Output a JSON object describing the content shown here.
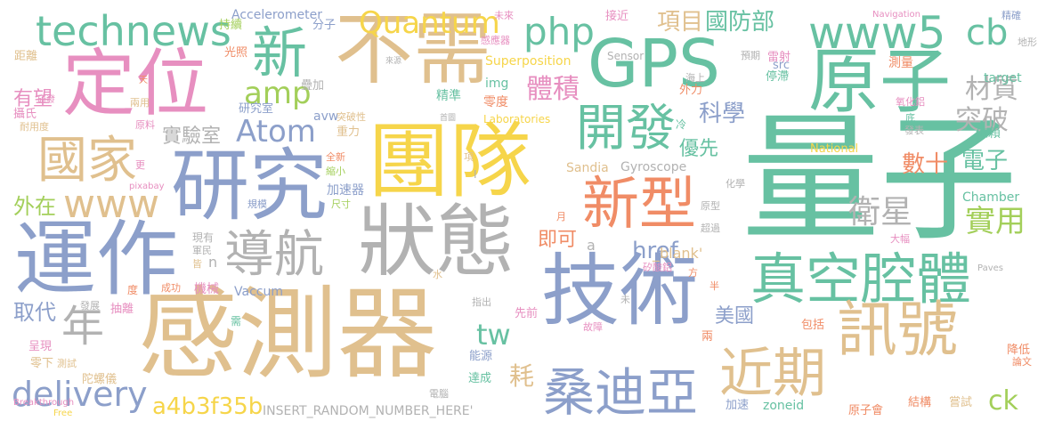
{
  "palette": {
    "teal": "#67c1a2",
    "blue": "#8c9fca",
    "tan": "#e0c08e",
    "pink": "#e78fc0",
    "orange": "#f08c66",
    "gray": "#b2b2b2",
    "olive": "#a3cf5a",
    "yellow": "#f6d54a"
  },
  "words": [
    {
      "text": "量子",
      "color": "teal"
    },
    {
      "text": "團隊",
      "color": "yellow"
    },
    {
      "text": "技術",
      "color": "blue"
    },
    {
      "text": "感測器",
      "color": "tan"
    },
    {
      "text": "狀態",
      "color": "gray"
    },
    {
      "text": "不需",
      "color": "tan"
    },
    {
      "text": "研究",
      "color": "blue"
    },
    {
      "text": "運作",
      "color": "blue"
    },
    {
      "text": "定位",
      "color": "pink"
    },
    {
      "text": "GPS",
      "color": "teal"
    },
    {
      "text": "原子",
      "color": "teal"
    },
    {
      "text": "真空腔體",
      "color": "teal"
    },
    {
      "text": "訊號",
      "color": "tan"
    },
    {
      "text": "新型",
      "color": "orange"
    },
    {
      "text": "桑迪亞",
      "color": "blue"
    },
    {
      "text": "導航",
      "color": "gray"
    },
    {
      "text": "近期",
      "color": "tan"
    },
    {
      "text": "開發",
      "color": "teal"
    },
    {
      "text": "國家",
      "color": "tan"
    },
    {
      "text": "technews",
      "color": "teal"
    },
    {
      "text": "www5",
      "color": "teal"
    },
    {
      "text": "新",
      "color": "teal"
    },
    {
      "text": "Quantum",
      "color": "yellow"
    },
    {
      "text": "php",
      "color": "teal"
    },
    {
      "text": "cb",
      "color": "teal"
    },
    {
      "text": "www",
      "color": "tan"
    },
    {
      "text": "年",
      "color": "gray"
    },
    {
      "text": "amp",
      "color": "olive"
    },
    {
      "text": "Atom",
      "color": "blue"
    },
    {
      "text": "delivery",
      "color": "blue"
    },
    {
      "text": "a4b3f35b",
      "color": "yellow"
    },
    {
      "text": "衛星",
      "color": "gray"
    },
    {
      "text": "實用",
      "color": "olive"
    },
    {
      "text": "tw",
      "color": "teal"
    },
    {
      "text": "href",
      "color": "blue"
    },
    {
      "text": "ck",
      "color": "olive"
    },
    {
      "text": "體積",
      "color": "pink"
    },
    {
      "text": "項目",
      "color": "tan"
    },
    {
      "text": "國防部",
      "color": "teal"
    },
    {
      "text": "材質",
      "color": "gray"
    },
    {
      "text": "突破",
      "color": "gray"
    },
    {
      "text": "科學",
      "color": "blue"
    },
    {
      "text": "數十",
      "color": "orange"
    },
    {
      "text": "電子",
      "color": "teal"
    },
    {
      "text": "耗",
      "color": "tan"
    },
    {
      "text": "優先",
      "color": "teal"
    },
    {
      "text": "即可",
      "color": "orange"
    },
    {
      "text": "實驗室",
      "color": "gray"
    },
    {
      "text": "外在",
      "color": "olive"
    },
    {
      "text": "取代",
      "color": "blue"
    },
    {
      "text": "有望",
      "color": "pink"
    },
    {
      "text": "美國",
      "color": "blue"
    },
    {
      "text": "_blank'",
      "color": "tan"
    },
    {
      "text": "INSERT_RANDOM_NUMBER_HERE'",
      "color": "gray"
    },
    {
      "text": "Accelerometer",
      "color": "blue"
    },
    {
      "text": "Superposition",
      "color": "yellow"
    },
    {
      "text": "Gyroscope",
      "color": "gray"
    },
    {
      "text": "Sandia",
      "color": "tan"
    },
    {
      "text": "Laboratories",
      "color": "yellow"
    },
    {
      "text": "Sensor",
      "color": "gray"
    },
    {
      "text": "Vaccum",
      "color": "blue"
    },
    {
      "text": "Chamber",
      "color": "teal"
    },
    {
      "text": "National",
      "color": "yellow"
    },
    {
      "text": "Navigation",
      "color": "pink"
    },
    {
      "text": "Breakthrough",
      "color": "pink"
    },
    {
      "text": "Paves",
      "color": "gray"
    },
    {
      "text": "Free",
      "color": "yellow"
    },
    {
      "text": "pixabay",
      "color": "pink"
    },
    {
      "text": "target",
      "color": "teal"
    },
    {
      "text": "src",
      "color": "blue"
    },
    {
      "text": "img",
      "color": "teal"
    },
    {
      "text": "avw",
      "color": "blue"
    },
    {
      "text": "zoneid",
      "color": "teal"
    },
    {
      "text": "n",
      "color": "gray"
    },
    {
      "text": "a",
      "color": "gray"
    },
    {
      "text": "精準",
      "color": "teal"
    },
    {
      "text": "零度",
      "color": "orange"
    },
    {
      "text": "重力",
      "color": "tan"
    },
    {
      "text": "外力",
      "color": "orange"
    },
    {
      "text": "停滯",
      "color": "teal"
    },
    {
      "text": "雷射",
      "color": "pink"
    },
    {
      "text": "測量",
      "color": "orange"
    },
    {
      "text": "依賴",
      "color": "teal"
    },
    {
      "text": "加速器",
      "color": "blue"
    },
    {
      "text": "機械",
      "color": "pink"
    },
    {
      "text": "分子",
      "color": "blue"
    },
    {
      "text": "接近",
      "color": "pink"
    },
    {
      "text": "持續",
      "color": "olive"
    },
    {
      "text": "距離",
      "color": "tan"
    },
    {
      "text": "光照",
      "color": "orange"
    },
    {
      "text": "攝氏",
      "color": "pink"
    },
    {
      "text": "研究室",
      "color": "blue"
    },
    {
      "text": "疊加",
      "color": "gray"
    },
    {
      "text": "原子會",
      "color": "orange"
    },
    {
      "text": "結構",
      "color": "orange"
    },
    {
      "text": "嘗試",
      "color": "tan"
    },
    {
      "text": "加速",
      "color": "blue"
    },
    {
      "text": "先前",
      "color": "pink"
    },
    {
      "text": "能源",
      "color": "blue"
    },
    {
      "text": "呈現",
      "color": "pink"
    },
    {
      "text": "零下",
      "color": "tan"
    },
    {
      "text": "抽離",
      "color": "pink"
    },
    {
      "text": "陀螺儀",
      "color": "tan"
    },
    {
      "text": "達成",
      "color": "teal"
    },
    {
      "text": "降低",
      "color": "orange"
    },
    {
      "text": "論文",
      "color": "orange"
    },
    {
      "text": "包括",
      "color": "orange"
    },
    {
      "text": "故障",
      "color": "pink"
    },
    {
      "text": "兩",
      "color": "orange"
    },
    {
      "text": "大幅",
      "color": "pink"
    },
    {
      "text": "原型",
      "color": "gray"
    },
    {
      "text": "超過",
      "color": "gray"
    },
    {
      "text": "化學",
      "color": "gray"
    },
    {
      "text": "矽酸鋁",
      "color": "pink"
    },
    {
      "text": "方",
      "color": "orange"
    },
    {
      "text": "氧化鋁",
      "color": "pink"
    },
    {
      "text": "底",
      "color": "teal"
    },
    {
      "text": "海上",
      "color": "gray"
    },
    {
      "text": "預期",
      "color": "gray"
    },
    {
      "text": "地形",
      "color": "gray"
    },
    {
      "text": "精確",
      "color": "blue"
    },
    {
      "text": "未來",
      "color": "pink"
    },
    {
      "text": "感應器",
      "color": "pink"
    },
    {
      "text": "突破性",
      "color": "tan"
    },
    {
      "text": "全新",
      "color": "orange"
    },
    {
      "text": "縮小",
      "color": "olive"
    },
    {
      "text": "尺寸",
      "color": "olive"
    },
    {
      "text": "規模",
      "color": "blue"
    },
    {
      "text": "現有",
      "color": "gray"
    },
    {
      "text": "軍民",
      "color": "gray"
    },
    {
      "text": "皆",
      "color": "tan"
    },
    {
      "text": "成功",
      "color": "orange"
    },
    {
      "text": "耐用度",
      "color": "tan"
    },
    {
      "text": "兩用",
      "color": "tan"
    },
    {
      "text": "原料",
      "color": "pink"
    },
    {
      "text": "研發",
      "color": "pink"
    },
    {
      "text": "天",
      "color": "orange"
    },
    {
      "text": "更",
      "color": "pink"
    },
    {
      "text": "發展",
      "color": "gray"
    },
    {
      "text": "度",
      "color": "orange"
    },
    {
      "text": "需",
      "color": "teal"
    },
    {
      "text": "電腦",
      "color": "gray"
    },
    {
      "text": "指出",
      "color": "gray"
    },
    {
      "text": "測試",
      "color": "tan"
    },
    {
      "text": "冷",
      "color": "teal"
    },
    {
      "text": "發表",
      "color": "gray"
    },
    {
      "text": "首圖",
      "color": "gray"
    },
    {
      "text": "來源",
      "color": "gray"
    },
    {
      "text": "項",
      "color": "tan"
    },
    {
      "text": "月",
      "color": "orange"
    },
    {
      "text": "半",
      "color": "orange"
    },
    {
      "text": "水",
      "color": "tan"
    },
    {
      "text": "未",
      "color": "gray"
    },
    {
      "text": "I",
      "color": "gray"
    }
  ]
}
